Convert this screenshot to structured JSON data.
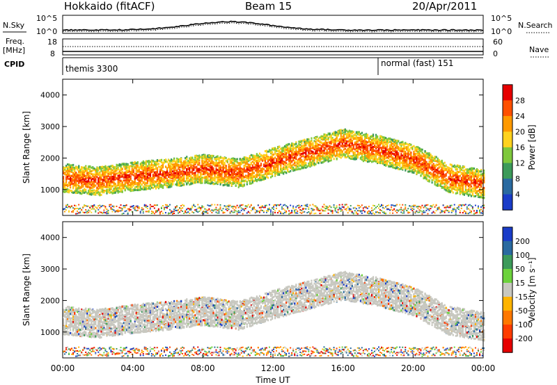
{
  "header": {
    "radar": "Hokkaido (fitACF)",
    "beam": "Beam 15",
    "date": "20/Apr/2011"
  },
  "strips": {
    "nsky_label": "N.Sky",
    "nsky_ticks": [
      "10^5",
      "10^0"
    ],
    "nsky_right_ticks": [
      "10^5",
      "10^0"
    ],
    "nsearch_label": "N.Search",
    "freq_label": "Freq.",
    "freq_unit": "[MHz]",
    "freq_ticks": [
      "18",
      "8"
    ],
    "nave_ticks": [
      "60",
      "0"
    ],
    "nave_label": "Nave",
    "cpid_label": "CPID",
    "cpid_segments": [
      {
        "label": "themis 3300",
        "from_hour": 0,
        "to_hour": 18
      },
      {
        "label": "normal (fast) 151",
        "from_hour": 18,
        "to_hour": 24
      }
    ]
  },
  "chart_data": [
    {
      "type": "heatmap",
      "panel": "power",
      "ylabel": "Slant Range [km]",
      "ylim": [
        180,
        4500
      ],
      "yticks": [
        "4000",
        "3000",
        "2000",
        "1000"
      ],
      "xlim": [
        0,
        24
      ],
      "colorbar_label": "Power [dB]",
      "colorbar_ticks": [
        "28",
        "24",
        "20",
        "16",
        "12",
        "8",
        "4"
      ],
      "colorbar_colors": [
        "#e60000",
        "#ff5000",
        "#ff9900",
        "#ffd21e",
        "#7ec83c",
        "#3c9a5a",
        "#2a6aa0",
        "#1a3cc8"
      ],
      "ridge": {
        "hours": [
          0,
          2,
          4,
          6,
          8,
          10,
          12,
          14,
          16,
          18,
          20,
          22,
          24
        ],
        "slant_range_km": [
          1400,
          1300,
          1450,
          1550,
          1700,
          1550,
          1900,
          2200,
          2500,
          2300,
          2000,
          1400,
          1200
        ]
      }
    },
    {
      "type": "heatmap",
      "panel": "velocity",
      "xlabel": "Time UT",
      "ylabel": "Slant Range [km]",
      "ylim": [
        180,
        4500
      ],
      "yticks": [
        "4000",
        "3000",
        "2000",
        "1000"
      ],
      "xlim": [
        0,
        24
      ],
      "xticks": [
        "00:00",
        "04:00",
        "08:00",
        "12:00",
        "16:00",
        "20:00",
        "00:00"
      ],
      "colorbar_label": "Velocity [m s⁻¹]",
      "colorbar_ticks": [
        "200",
        "100",
        "50",
        "15",
        "-15",
        "-50",
        "-100",
        "-200"
      ],
      "colorbar_colors": [
        "#1a3cc8",
        "#2a6aa0",
        "#3c9a5a",
        "#6cd23c",
        "#c8c8c0",
        "#ffb400",
        "#ff7800",
        "#ff3c00",
        "#e60000"
      ]
    }
  ]
}
